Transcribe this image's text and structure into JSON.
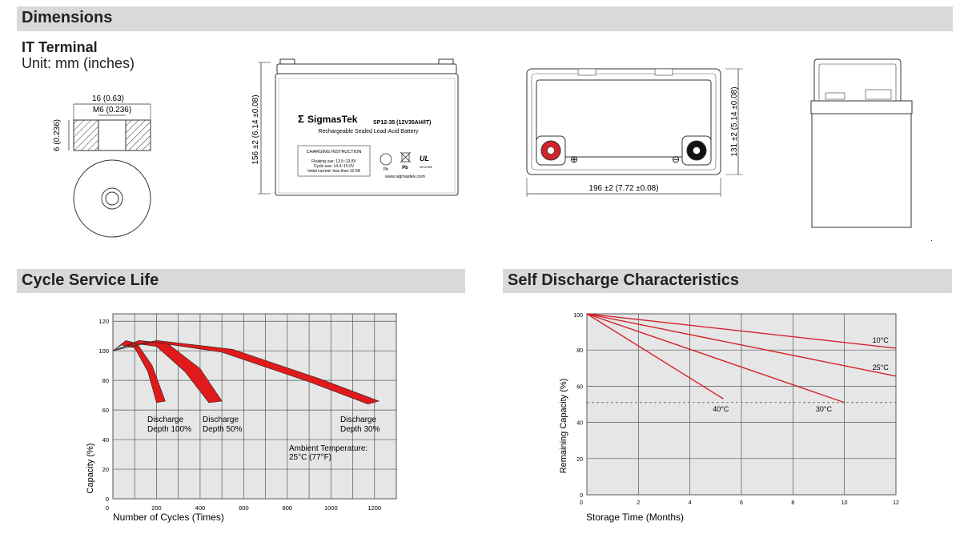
{
  "dimensions": {
    "heading": "Dimensions",
    "terminal_title": "IT Terminal",
    "unit_label": "Unit: mm (inches)",
    "terminal_width_label": "16 (0.63)",
    "terminal_thread_label": "M6 (0.236)",
    "terminal_height_label": "6 (0.236)",
    "front_height_label": "156 ±2 (6.14 ±0.08)",
    "top_length_label": "196 ±2 (7.72 ±0.08)",
    "top_height_label": "131 ±2 (5.14 ±0.08)",
    "brand": "SigmasTek",
    "brand_icon": "sigma-logo-icon",
    "model": "SP12-35 (12V35AH/IT)",
    "battery_desc": "Rechargeable Sealed Lead-Acid Battery",
    "charging_title": "CHARGING INSTRUCTION",
    "charging_lines": [
      "Floating use: 13.5~13.8V",
      "Cycle use: 14.4~15.0V",
      "Initial current: less than 10.5A"
    ],
    "website": "www.sigmastek.com",
    "pb_labels": [
      "Pb",
      "Pb"
    ],
    "ul_mark": "UL",
    "ul_number": "MH47828",
    "plus_symbol": "⊕",
    "minus_symbol": "⊖",
    "colors": {
      "positive_terminal": "#d2232a",
      "negative_terminal": "#111111"
    }
  },
  "cycle": {
    "heading": "Cycle Service Life",
    "ylabel": "Capacity (%)",
    "xlabel": "Number of Cycles (Times)",
    "annotations": {
      "d100": [
        "Discharge",
        "Depth 100%"
      ],
      "d50": [
        "Discharge",
        "Depth 50%"
      ],
      "d30": [
        "Discharge",
        "Depth 30%"
      ],
      "ambient": [
        "Ambient Temperature:",
        "25°C (77°F)"
      ]
    }
  },
  "self_discharge": {
    "heading": "Self Discharge Characteristics",
    "ylabel": "Remaining Capacity (%)",
    "xlabel": "Storage Time (Months)"
  },
  "chart_data": [
    {
      "type": "area",
      "title": "Cycle Service Life",
      "xlabel": "Number of Cycles (Times)",
      "ylabel": "Capacity (%)",
      "xlim": [
        0,
        1300
      ],
      "ylim": [
        0,
        125
      ],
      "x_ticks": [
        0,
        200,
        400,
        600,
        800,
        1000,
        1200
      ],
      "y_ticks": [
        0,
        20,
        40,
        60,
        80,
        100,
        120
      ],
      "grid": true,
      "series": [
        {
          "name": "Discharge Depth 100%",
          "upper": [
            [
              0,
              100
            ],
            [
              60,
              107
            ],
            [
              110,
              105
            ],
            [
              180,
              90
            ],
            [
              240,
              66
            ]
          ],
          "lower": [
            [
              0,
              100
            ],
            [
              40,
              104
            ],
            [
              100,
              102
            ],
            [
              160,
              86
            ],
            [
              200,
              65
            ]
          ],
          "color": "#e01a1a"
        },
        {
          "name": "Discharge Depth 50%",
          "upper": [
            [
              0,
              100
            ],
            [
              120,
              107
            ],
            [
              250,
              105
            ],
            [
              400,
              88
            ],
            [
              500,
              66
            ]
          ],
          "lower": [
            [
              0,
              100
            ],
            [
              100,
              105
            ],
            [
              200,
              103
            ],
            [
              330,
              86
            ],
            [
              440,
              65
            ]
          ],
          "color": "#e01a1a"
        },
        {
          "name": "Discharge Depth 30%",
          "upper": [
            [
              0,
              100
            ],
            [
              200,
              107
            ],
            [
              550,
              101
            ],
            [
              950,
              81
            ],
            [
              1220,
              66
            ]
          ],
          "lower": [
            [
              0,
              100
            ],
            [
              180,
              106
            ],
            [
              500,
              99
            ],
            [
              900,
              79
            ],
            [
              1170,
              64
            ]
          ],
          "color": "#e01a1a"
        }
      ]
    },
    {
      "type": "line",
      "title": "Self Discharge Characteristics",
      "xlabel": "Storage Time (Months)",
      "ylabel": "Remaining Capacity (%)",
      "xlim": [
        0,
        12
      ],
      "ylim": [
        0,
        100
      ],
      "x_ticks": [
        0,
        2,
        4,
        6,
        8,
        10,
        12
      ],
      "y_ticks": [
        0,
        20,
        40,
        60,
        80,
        100
      ],
      "reference_line_y": 51,
      "grid": true,
      "series": [
        {
          "name": "10°C",
          "x": [
            0,
            12
          ],
          "y": [
            100,
            81
          ]
        },
        {
          "name": "25°C",
          "x": [
            0,
            12.2
          ],
          "y": [
            100,
            65
          ]
        },
        {
          "name": "30°C",
          "x": [
            0,
            10
          ],
          "y": [
            100,
            51
          ]
        },
        {
          "name": "40°C",
          "x": [
            0,
            5.3
          ],
          "y": [
            100,
            53
          ]
        }
      ],
      "color": "#d2232a"
    }
  ]
}
